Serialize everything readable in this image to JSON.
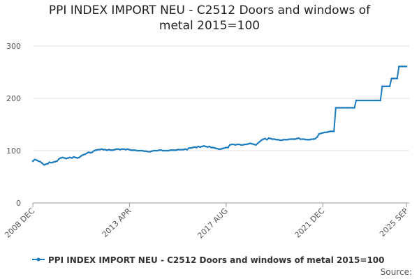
{
  "chart_data": {
    "type": "line",
    "title": "PPI INDEX IMPORT NEU - C2512 Doors and windows of metal 2015=100",
    "source": "Source:",
    "categories": [
      "2008 DEC",
      null,
      null,
      null,
      null,
      null,
      null,
      null,
      null,
      null,
      null,
      null,
      null,
      null,
      null,
      null,
      null,
      null,
      null,
      null,
      null,
      null,
      null,
      null,
      null,
      null,
      null,
      null,
      null,
      null,
      null,
      null,
      null,
      null,
      null,
      null,
      null,
      null,
      null,
      null,
      null,
      null,
      null,
      null,
      null,
      null,
      null,
      null,
      null,
      null,
      null,
      null,
      "2013 APR",
      null,
      null,
      null,
      null,
      null,
      null,
      null,
      null,
      null,
      null,
      null,
      null,
      null,
      null,
      null,
      null,
      null,
      null,
      null,
      null,
      null,
      null,
      null,
      null,
      null,
      null,
      null,
      null,
      null,
      null,
      null,
      null,
      null,
      null,
      null,
      null,
      null,
      null,
      null,
      null,
      null,
      null,
      null,
      null,
      null,
      null,
      null,
      null,
      null,
      null,
      null,
      "2017 AUG",
      null,
      null,
      null,
      null,
      null,
      null,
      null,
      null,
      null,
      null,
      null,
      null,
      null,
      null,
      null,
      null,
      null,
      null,
      null,
      null,
      null,
      null,
      null,
      null,
      null,
      null,
      null,
      null,
      null,
      null,
      null,
      null,
      null,
      null,
      null,
      null,
      null,
      null,
      null,
      null,
      null,
      null,
      null,
      null,
      null,
      null,
      null,
      null,
      null,
      null,
      null,
      "2021 DEC",
      null,
      null,
      null,
      null,
      null,
      null,
      null,
      null,
      null,
      null,
      null,
      null,
      null,
      null,
      null,
      null,
      null,
      null,
      null,
      null,
      null,
      null,
      null,
      null,
      null,
      null,
      null,
      null,
      null,
      null,
      null,
      null,
      null,
      null,
      null,
      null,
      null,
      null,
      null,
      null,
      null,
      null,
      null,
      null,
      "2025 SEP"
    ],
    "series": [
      {
        "name": "PPI INDEX IMPORT NEU - C2512 Doors and windows of metal 2015=100",
        "color": "#1a7bbf",
        "values": [
          80,
          83,
          82,
          80,
          79,
          76,
          73,
          74,
          75,
          78,
          77,
          78,
          79,
          80,
          84,
          86,
          87,
          86,
          85,
          86,
          87,
          86,
          88,
          87,
          86,
          87,
          90,
          92,
          93,
          95,
          97,
          96,
          97,
          100,
          101,
          102,
          102,
          103,
          102,
          102,
          101,
          102,
          101,
          101,
          102,
          103,
          103,
          102,
          103,
          103,
          102,
          103,
          102,
          101,
          101,
          101,
          100,
          100,
          100,
          100,
          99,
          99,
          98,
          98,
          99,
          100,
          100,
          100,
          101,
          101,
          100,
          100,
          100,
          100,
          101,
          101,
          101,
          101,
          102,
          102,
          102,
          102,
          103,
          102,
          105,
          105,
          106,
          107,
          106,
          108,
          107,
          108,
          109,
          108,
          107,
          108,
          106,
          106,
          105,
          104,
          103,
          103,
          104,
          105,
          106,
          106,
          111,
          112,
          112,
          111,
          112,
          112,
          111,
          111,
          112,
          112,
          113,
          114,
          113,
          112,
          111,
          114,
          117,
          120,
          122,
          123,
          121,
          124,
          123,
          122,
          122,
          121,
          121,
          120,
          120,
          121,
          121,
          121,
          122,
          122,
          122,
          122,
          123,
          124,
          122,
          122,
          122,
          121,
          121,
          121,
          122,
          122,
          123,
          126,
          132,
          133,
          134,
          135,
          135,
          136,
          137,
          137,
          137,
          182,
          182,
          182,
          182,
          182,
          182,
          182,
          182,
          182,
          182,
          182,
          196,
          196,
          196,
          196,
          196,
          196,
          196,
          196,
          196,
          196,
          196,
          196,
          196,
          196,
          223,
          223,
          223,
          223,
          223,
          238,
          238,
          238,
          238,
          261,
          261,
          261,
          261,
          261
        ]
      }
    ],
    "ylim": [
      0,
      300
    ],
    "yticks": [
      0,
      100,
      200,
      300
    ],
    "grid": true
  }
}
